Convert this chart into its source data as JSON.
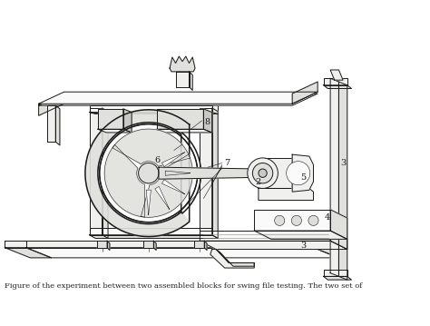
{
  "background_color": "#ffffff",
  "line_color": "#1a1a1a",
  "fig_width": 4.74,
  "fig_height": 3.59,
  "dpi": 100,
  "caption": "Figure of the experiment between two assembled blocks for swing file testing. The two set of",
  "label_fontsize": 7,
  "lw_main": 0.7,
  "lw_thick": 1.1,
  "lw_thin": 0.4,
  "fill_light": "#f0f0ee",
  "fill_mid": "#e0e0dc",
  "fill_dark": "#c8c8c4",
  "fill_white": "#fafafa"
}
